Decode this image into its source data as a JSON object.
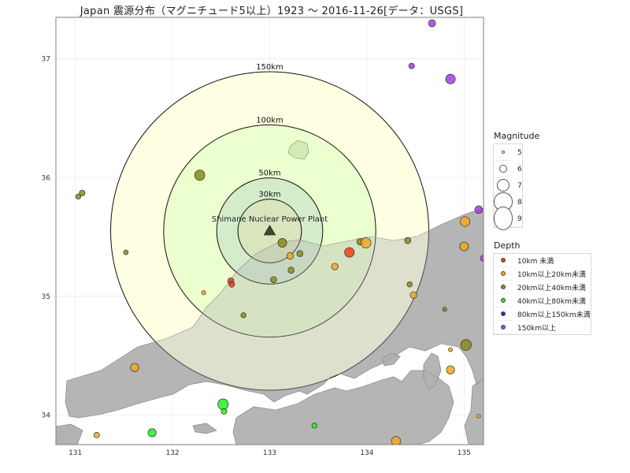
{
  "title": "Japan 震源分布（マグニチュード5以上）1923 ～ 2016-11-26[データ：USGS]",
  "map": {
    "plant": {
      "name": "Shimane Nuclear Power Plant",
      "lon": 133.0,
      "lat": 35.55
    },
    "rings": [
      {
        "label": "150km",
        "radius_km": 150,
        "fill": "#ffffe0",
        "alpha": 0.9
      },
      {
        "label": "100km",
        "radius_km": 100,
        "fill": "#e6ffc8",
        "alpha": 0.75
      },
      {
        "label": "50km",
        "radius_km": 50,
        "fill": "#cfe7c8",
        "alpha": 0.8
      },
      {
        "label": "30km",
        "radius_km": 30,
        "fill": "#d9e3b8",
        "alpha": 0.8
      }
    ],
    "x_ticks": [
      "131",
      "132",
      "133",
      "134",
      "135"
    ],
    "y_ticks": [
      "34",
      "35",
      "36",
      "37"
    ],
    "land_color": "#b3b3b3",
    "grid": true
  },
  "legend": {
    "magnitude_title": "Magnitude",
    "magnitude_items": [
      {
        "label": "5",
        "mag": 5
      },
      {
        "label": "6",
        "mag": 6
      },
      {
        "label": "7",
        "mag": 7
      },
      {
        "label": "8",
        "mag": 8
      },
      {
        "label": "9",
        "mag": 9
      }
    ],
    "depth_title": "Depth",
    "depth_items": [
      {
        "label": "10km 未満",
        "color": "#e8401c"
      },
      {
        "label": "10km以上20km未満",
        "color": "#f5a623"
      },
      {
        "label": "20km以上40km未満",
        "color": "#8b8a1c"
      },
      {
        "label": "40km以上80km未満",
        "color": "#22ee22"
      },
      {
        "label": "80km以上150km未満",
        "color": "#2b2bd0"
      },
      {
        "label": "150km以上",
        "color": "#a040e0"
      }
    ]
  },
  "chart_data": {
    "type": "scatter",
    "x_range": [
      130.8,
      135.2
    ],
    "y_range": [
      33.75,
      37.35
    ],
    "points": [
      {
        "lon": 134.67,
        "lat": 37.3,
        "mag": 5.8,
        "depth": "150km以上"
      },
      {
        "lon": 134.85,
        "lat": 37.38,
        "mag": 5.2,
        "depth": "150km以上"
      },
      {
        "lon": 134.46,
        "lat": 36.94,
        "mag": 5.5,
        "depth": "150km以上"
      },
      {
        "lon": 134.86,
        "lat": 36.83,
        "mag": 6.3,
        "depth": "150km以上"
      },
      {
        "lon": 135.15,
        "lat": 35.73,
        "mag": 5.9,
        "depth": "150km以上"
      },
      {
        "lon": 135.2,
        "lat": 35.32,
        "mag": 5.6,
        "depth": "150km以上"
      },
      {
        "lon": 132.28,
        "lat": 36.02,
        "mag": 6.4,
        "depth": "20km以上40km未満"
      },
      {
        "lon": 131.07,
        "lat": 35.87,
        "mag": 5.5,
        "depth": "20km以上40km未満"
      },
      {
        "lon": 131.03,
        "lat": 35.84,
        "mag": 5.4,
        "depth": "20km以上40km未満"
      },
      {
        "lon": 131.52,
        "lat": 35.37,
        "mag": 5.3,
        "depth": "20km以上40km未満"
      },
      {
        "lon": 133.13,
        "lat": 35.45,
        "mag": 6.1,
        "depth": "20km以上40km未満"
      },
      {
        "lon": 133.21,
        "lat": 35.34,
        "mag": 5.7,
        "depth": "10km以上20km未満"
      },
      {
        "lon": 133.31,
        "lat": 35.36,
        "mag": 5.6,
        "depth": "20km以上40km未満"
      },
      {
        "lon": 133.22,
        "lat": 35.22,
        "mag": 5.6,
        "depth": "20km以上40km未満"
      },
      {
        "lon": 133.04,
        "lat": 35.14,
        "mag": 5.6,
        "depth": "20km以上40km未満"
      },
      {
        "lon": 133.67,
        "lat": 35.25,
        "mag": 5.7,
        "depth": "10km以上20km未満"
      },
      {
        "lon": 133.82,
        "lat": 35.37,
        "mag": 6.3,
        "depth": "10km 未満"
      },
      {
        "lon": 133.93,
        "lat": 35.46,
        "mag": 5.7,
        "depth": "20km以上40km未満"
      },
      {
        "lon": 133.99,
        "lat": 35.45,
        "mag": 6.4,
        "depth": "10km以上20km未満"
      },
      {
        "lon": 134.42,
        "lat": 35.47,
        "mag": 5.6,
        "depth": "20km以上40km未満"
      },
      {
        "lon": 135.01,
        "lat": 35.63,
        "mag": 6.3,
        "depth": "10km以上20km未満"
      },
      {
        "lon": 135.0,
        "lat": 35.42,
        "mag": 6.1,
        "depth": "10km以上20km未満"
      },
      {
        "lon": 132.6,
        "lat": 35.13,
        "mag": 5.6,
        "depth": "10km 未満"
      },
      {
        "lon": 132.61,
        "lat": 35.1,
        "mag": 5.5,
        "depth": "10km 未満"
      },
      {
        "lon": 132.32,
        "lat": 35.03,
        "mag": 5.2,
        "depth": "10km以上20km未満"
      },
      {
        "lon": 132.73,
        "lat": 34.84,
        "mag": 5.4,
        "depth": "20km以上40km未満"
      },
      {
        "lon": 134.44,
        "lat": 35.1,
        "mag": 5.4,
        "depth": "20km以上40km未満"
      },
      {
        "lon": 134.48,
        "lat": 35.01,
        "mag": 5.7,
        "depth": "10km以上20km未満"
      },
      {
        "lon": 134.8,
        "lat": 34.89,
        "mag": 5.2,
        "depth": "20km以上40km未満"
      },
      {
        "lon": 135.02,
        "lat": 34.59,
        "mag": 6.5,
        "depth": "20km以上40km未満"
      },
      {
        "lon": 134.86,
        "lat": 34.55,
        "mag": 5.2,
        "depth": "10km以上20km未満"
      },
      {
        "lon": 134.86,
        "lat": 34.38,
        "mag": 6.0,
        "depth": "10km以上20km未満"
      },
      {
        "lon": 131.61,
        "lat": 34.4,
        "mag": 6.0,
        "depth": "10km以上20km未満"
      },
      {
        "lon": 132.52,
        "lat": 34.09,
        "mag": 6.5,
        "depth": "40km以上80km未満"
      },
      {
        "lon": 132.53,
        "lat": 34.03,
        "mag": 5.5,
        "depth": "40km以上80km未満"
      },
      {
        "lon": 131.79,
        "lat": 33.85,
        "mag": 6.0,
        "depth": "40km以上80km未満"
      },
      {
        "lon": 131.22,
        "lat": 33.83,
        "mag": 5.5,
        "depth": "10km以上20km未満"
      },
      {
        "lon": 133.46,
        "lat": 33.91,
        "mag": 5.4,
        "depth": "40km以上80km未満"
      },
      {
        "lon": 134.3,
        "lat": 33.78,
        "mag": 6.2,
        "depth": "10km以上20km未満"
      },
      {
        "lon": 135.15,
        "lat": 33.99,
        "mag": 5.1,
        "depth": "10km以上20km未満"
      }
    ]
  }
}
